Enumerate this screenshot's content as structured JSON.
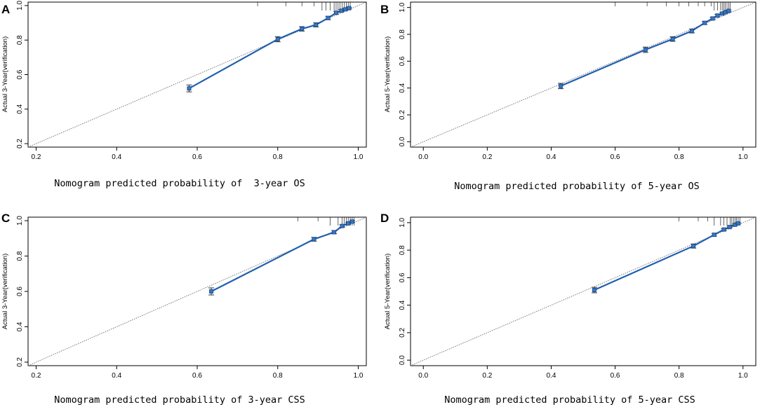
{
  "chart_data": [
    {
      "type": "line",
      "panel": "A",
      "xlabel": "Nomogram predicted probability of  3-year OS",
      "ylabel": "Actual 3-Year(verification)",
      "xlim": [
        0.18,
        1.02
      ],
      "ylim": [
        0.18,
        1.02
      ],
      "xticks": [
        0.2,
        0.4,
        0.6,
        0.8,
        1.0
      ],
      "yticks": [
        0.2,
        0.4,
        0.6,
        0.8,
        1.0
      ],
      "xtick_labels": [
        "0.2",
        "0.4",
        "0.6",
        "0.8",
        "1.0"
      ],
      "ytick_labels": [
        "0.2",
        "0.4",
        "0.6",
        "0.8",
        "1.0"
      ],
      "reference_line": "ideal (y = x)",
      "points": [
        {
          "x": 0.58,
          "y": 0.52,
          "lo": 0.5,
          "hi": 0.54
        },
        {
          "x": 0.8,
          "y": 0.805,
          "lo": 0.79,
          "hi": 0.82
        },
        {
          "x": 0.86,
          "y": 0.865,
          "lo": 0.852,
          "hi": 0.878
        },
        {
          "x": 0.895,
          "y": 0.888,
          "lo": 0.876,
          "hi": 0.9
        },
        {
          "x": 0.925,
          "y": 0.928,
          "lo": 0.918,
          "hi": 0.938
        },
        {
          "x": 0.945,
          "y": 0.958,
          "lo": 0.95,
          "hi": 0.966
        },
        {
          "x": 0.958,
          "y": 0.97,
          "lo": 0.963,
          "hi": 0.977
        },
        {
          "x": 0.968,
          "y": 0.978,
          "lo": 0.972,
          "hi": 0.984
        },
        {
          "x": 0.977,
          "y": 0.985,
          "lo": 0.98,
          "hi": 0.99
        }
      ],
      "rug": [
        0.75,
        0.82,
        0.86,
        0.89,
        0.91,
        0.92,
        0.93,
        0.94,
        0.945,
        0.95,
        0.955,
        0.96,
        0.965,
        0.97,
        0.975,
        0.98
      ]
    },
    {
      "type": "line",
      "panel": "B",
      "xlabel": "Nomogram predicted probability of 5-year OS",
      "ylabel": "Actual 5-Year(verification)",
      "xlim": [
        -0.04,
        1.04
      ],
      "ylim": [
        -0.04,
        1.04
      ],
      "xticks": [
        0.0,
        0.2,
        0.4,
        0.6,
        0.8,
        1.0
      ],
      "yticks": [
        0.0,
        0.2,
        0.4,
        0.6,
        0.8,
        1.0
      ],
      "xtick_labels": [
        "0.0",
        "0.2",
        "0.4",
        "0.6",
        "0.8",
        "1.0"
      ],
      "ytick_labels": [
        "0.0",
        "0.2",
        "0.4",
        "0.6",
        "0.8",
        "1.0"
      ],
      "reference_line": "ideal (y = x)",
      "points": [
        {
          "x": 0.43,
          "y": 0.415,
          "lo": 0.395,
          "hi": 0.435
        },
        {
          "x": 0.695,
          "y": 0.685,
          "lo": 0.665,
          "hi": 0.705
        },
        {
          "x": 0.78,
          "y": 0.765,
          "lo": 0.748,
          "hi": 0.782
        },
        {
          "x": 0.84,
          "y": 0.825,
          "lo": 0.81,
          "hi": 0.84
        },
        {
          "x": 0.88,
          "y": 0.885,
          "lo": 0.873,
          "hi": 0.897
        },
        {
          "x": 0.905,
          "y": 0.918,
          "lo": 0.908,
          "hi": 0.928
        },
        {
          "x": 0.92,
          "y": 0.94,
          "lo": 0.931,
          "hi": 0.949
        },
        {
          "x": 0.935,
          "y": 0.955,
          "lo": 0.947,
          "hi": 0.963
        },
        {
          "x": 0.945,
          "y": 0.965,
          "lo": 0.958,
          "hi": 0.972
        },
        {
          "x": 0.955,
          "y": 0.975,
          "lo": 0.969,
          "hi": 0.981
        }
      ],
      "rug": [
        0.6,
        0.7,
        0.76,
        0.8,
        0.83,
        0.86,
        0.88,
        0.9,
        0.91,
        0.92,
        0.93,
        0.935,
        0.94,
        0.945,
        0.95,
        0.955,
        0.96
      ]
    },
    {
      "type": "line",
      "panel": "C",
      "xlabel": "Nomogram predicted probability of 3-year CSS",
      "ylabel": "Actual 3-Year(verification)",
      "xlim": [
        0.18,
        1.02
      ],
      "ylim": [
        0.18,
        1.02
      ],
      "xticks": [
        0.2,
        0.4,
        0.6,
        0.8,
        1.0
      ],
      "yticks": [
        0.2,
        0.4,
        0.6,
        0.8,
        1.0
      ],
      "xtick_labels": [
        "0.2",
        "0.4",
        "0.6",
        "0.8",
        "1.0"
      ],
      "ytick_labels": [
        "0.2",
        "0.4",
        "0.6",
        "0.8",
        "1.0"
      ],
      "reference_line": "ideal (y = x)",
      "points": [
        {
          "x": 0.635,
          "y": 0.6,
          "lo": 0.58,
          "hi": 0.62
        },
        {
          "x": 0.89,
          "y": 0.895,
          "lo": 0.884,
          "hi": 0.906
        },
        {
          "x": 0.94,
          "y": 0.935,
          "lo": 0.926,
          "hi": 0.944
        },
        {
          "x": 0.96,
          "y": 0.97,
          "lo": 0.963,
          "hi": 0.977
        },
        {
          "x": 0.975,
          "y": 0.985,
          "lo": 0.98,
          "hi": 0.99
        },
        {
          "x": 0.985,
          "y": 0.995,
          "lo": 0.99,
          "hi": 1.0
        }
      ],
      "rug": [
        0.85,
        0.9,
        0.93,
        0.95,
        0.96,
        0.965,
        0.97,
        0.975,
        0.98,
        0.985,
        0.99
      ]
    },
    {
      "type": "line",
      "panel": "D",
      "xlabel": "Nomogram predicted probability of 5-year CSS",
      "ylabel": "Actual 5-Year(verification)",
      "xlim": [
        -0.04,
        1.04
      ],
      "ylim": [
        -0.04,
        1.04
      ],
      "xticks": [
        0.0,
        0.2,
        0.4,
        0.6,
        0.8,
        1.0
      ],
      "yticks": [
        0.0,
        0.2,
        0.4,
        0.6,
        0.8,
        1.0
      ],
      "xtick_labels": [
        "0.0",
        "0.2",
        "0.4",
        "0.6",
        "0.8",
        "1.0"
      ],
      "ytick_labels": [
        "0.0",
        "0.2",
        "0.4",
        "0.6",
        "0.8",
        "1.0"
      ],
      "reference_line": "ideal (y = x)",
      "points": [
        {
          "x": 0.535,
          "y": 0.51,
          "lo": 0.49,
          "hi": 0.53
        },
        {
          "x": 0.845,
          "y": 0.83,
          "lo": 0.815,
          "hi": 0.845
        },
        {
          "x": 0.91,
          "y": 0.912,
          "lo": 0.902,
          "hi": 0.922
        },
        {
          "x": 0.94,
          "y": 0.95,
          "lo": 0.942,
          "hi": 0.958
        },
        {
          "x": 0.958,
          "y": 0.968,
          "lo": 0.962,
          "hi": 0.974
        },
        {
          "x": 0.975,
          "y": 0.985,
          "lo": 0.98,
          "hi": 0.99
        },
        {
          "x": 0.985,
          "y": 0.995,
          "lo": 0.99,
          "hi": 1.0
        }
      ],
      "rug": [
        0.8,
        0.86,
        0.89,
        0.91,
        0.93,
        0.94,
        0.95,
        0.96,
        0.965,
        0.97,
        0.975,
        0.98,
        0.985,
        0.99
      ]
    }
  ]
}
